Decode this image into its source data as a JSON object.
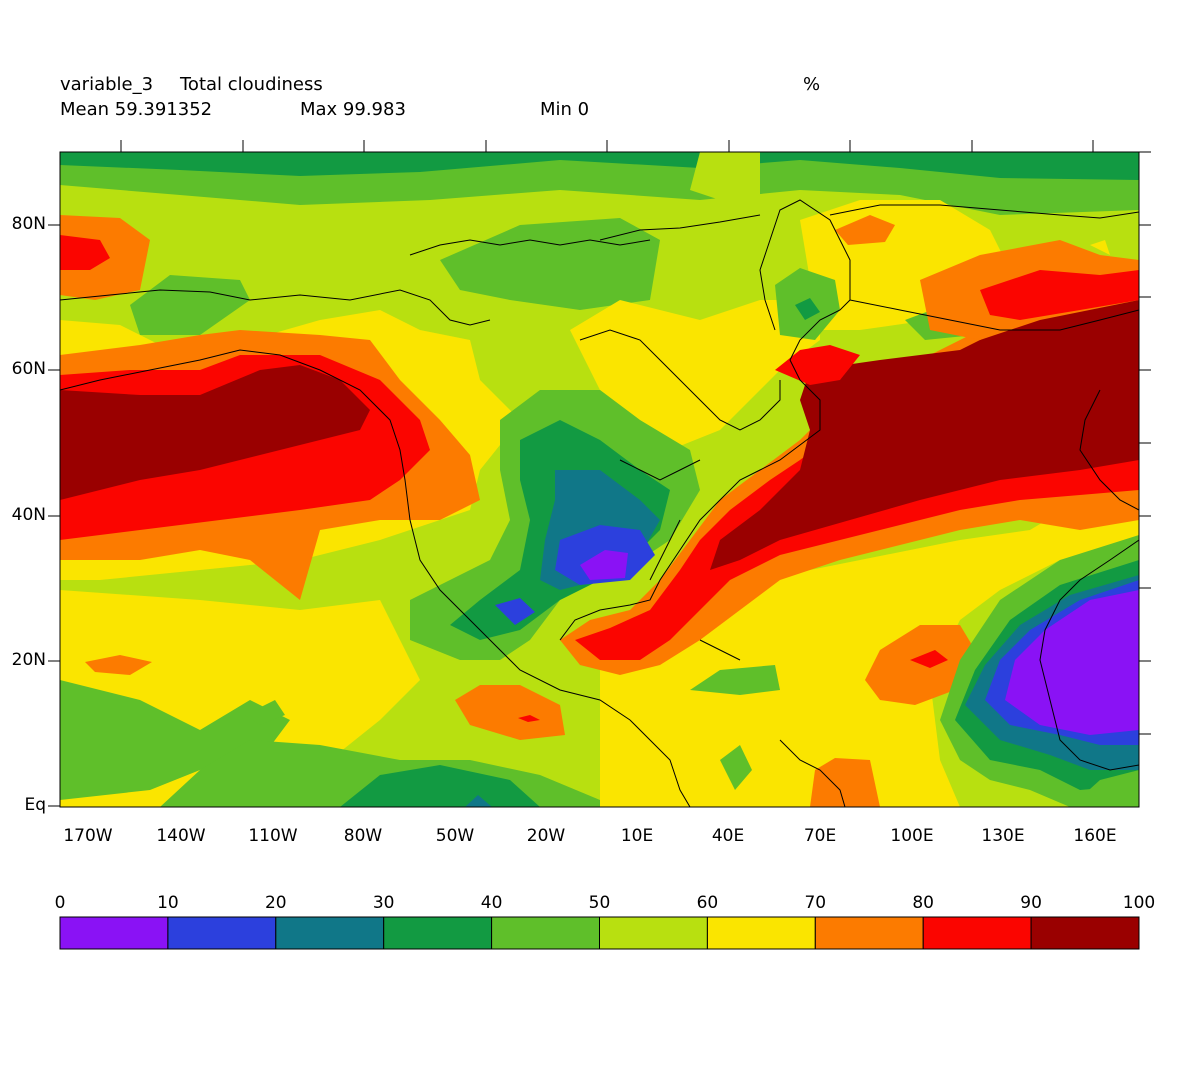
{
  "header": {
    "variable": "variable_3",
    "long_name": "Total cloudiness",
    "units": "%",
    "mean": "Mean 59.391352",
    "max": "Max 99.983",
    "min": "Min 0"
  },
  "map": {
    "lat_labels": [
      "80N",
      "60N",
      "40N",
      "20N",
      "Eq"
    ],
    "lon_labels": [
      "170W",
      "140W",
      "110W",
      "80W",
      "50W",
      "20W",
      "10E",
      "40E",
      "70E",
      "100E",
      "130E",
      "160E"
    ]
  },
  "colorbar": {
    "labels": [
      "0",
      "10",
      "20",
      "30",
      "40",
      "50",
      "60",
      "70",
      "80",
      "90",
      "100"
    ],
    "colors": [
      "#8a12f5",
      "#2c40dd",
      "#107788",
      "#129a42",
      "#5fbf2a",
      "#b8e010",
      "#fae500",
      "#fc7b00",
      "#fb0500",
      "#9a0000"
    ]
  },
  "colors": {
    "c0_10": "#8a12f5",
    "c10_20": "#2c40dd",
    "c20_30": "#107788",
    "c30_40": "#129a42",
    "c40_50": "#5fbf2a",
    "c50_60": "#b8e010",
    "c60_70": "#fae500",
    "c70_80": "#fc7b00",
    "c80_90": "#fb0500",
    "c90_100": "#9a0000"
  }
}
